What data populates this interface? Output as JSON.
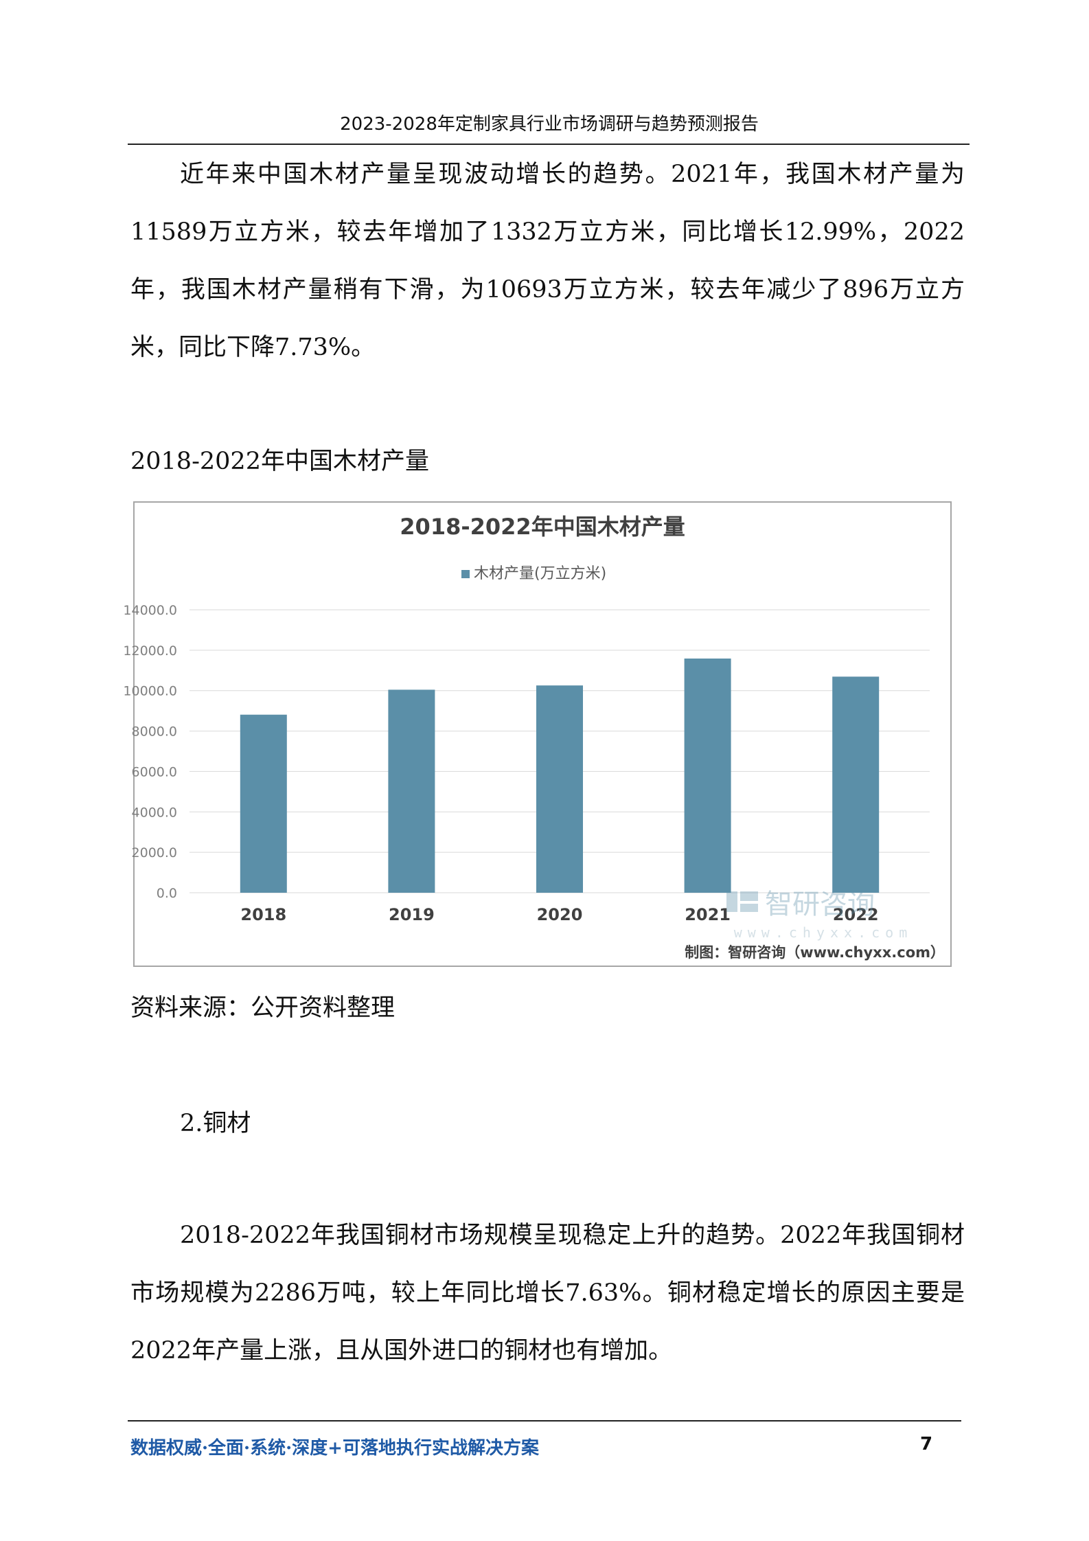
{
  "header": {
    "title": "2023-2028年定制家具行业市场调研与趋势预测报告"
  },
  "paragraph1": "近年来中国木材产量呈现波动增长的趋势。2021年，我国木材产量为11589万立方米，较去年增加了1332万立方米，同比增长12.99%，2022年，我国木材产量稍有下滑，为10693万立方米，较去年减少了896万立方米，同比下降7.73%。",
  "figure_caption": "2018-2022年中国木材产量",
  "chart_data": {
    "type": "bar",
    "title": "2018-2022年中国木材产量",
    "categories": [
      "2018",
      "2019",
      "2020",
      "2021",
      "2022"
    ],
    "series": [
      {
        "name": "木材产量(万立方米)",
        "values": [
          8811,
          10046,
          10257,
          11589,
          10693
        ],
        "color": "#5b8fa8"
      }
    ],
    "ylim": [
      0,
      14000
    ],
    "yticks": [
      "0.0",
      "2000.0",
      "4000.0",
      "6000.0",
      "8000.0",
      "10000.0",
      "12000.0",
      "14000.0"
    ],
    "grid": true,
    "legend_position": "top",
    "watermark": {
      "logo_text": "智研咨询",
      "url": "www.chyxx.com"
    },
    "credit": "制图：智研咨询（www.chyxx.com）"
  },
  "source_note": "资料来源：公开资料整理",
  "section_heading": "2.铜材",
  "paragraph2": "2018-2022年我国铜材市场规模呈现稳定上升的趋势。2022年我国铜材市场规模为2286万吨，较上年同比增长7.63%。铜材稳定增长的原因主要是2022年产量上涨，且从国外进口的铜材也有增加。",
  "footer": {
    "slogan": "数据权威·全面·系统·深度+可落地执行实战解决方案",
    "page_number": "7"
  }
}
